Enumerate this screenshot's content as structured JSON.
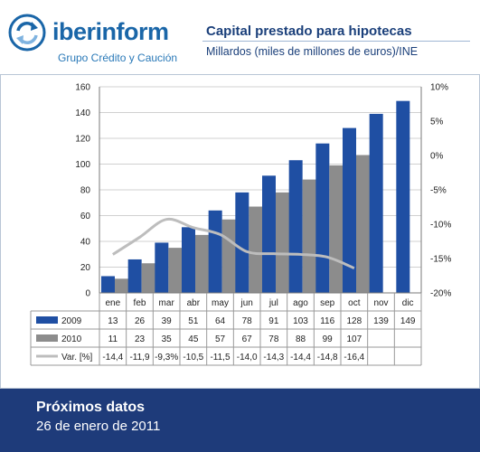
{
  "header": {
    "brand_bold": "iberinform",
    "tagline": "Grupo Crédito y Caución",
    "title": "Capital prestado para hipotecas",
    "subtitle": "Millardos (miles de millones de euros)/INE"
  },
  "footer": {
    "title": "Próximos datos",
    "date": "26 de enero de 2011"
  },
  "colors": {
    "series_2009": "#1f4fa3",
    "series_2010": "#8c8c8c",
    "series_var": "#bdbdbd",
    "footer_bg": "#1e3b7a"
  },
  "icons": {
    "logo": "circular-arrows-icon"
  },
  "chart_data": {
    "type": "bar",
    "categories": [
      "ene",
      "feb",
      "mar",
      "abr",
      "may",
      "jun",
      "jul",
      "ago",
      "sep",
      "oct",
      "nov",
      "dic"
    ],
    "series": [
      {
        "name": "2009",
        "values": [
          13,
          26,
          39,
          51,
          64,
          78,
          91,
          103,
          116,
          128,
          139,
          149
        ]
      },
      {
        "name": "2010",
        "values": [
          11,
          23,
          35,
          45,
          57,
          67,
          78,
          88,
          99,
          107,
          null,
          null
        ]
      }
    ],
    "line_series": {
      "name": "Var. [%]",
      "values": [
        -14.4,
        -11.9,
        -9.3,
        -10.5,
        -11.5,
        -14.0,
        -14.3,
        -14.4,
        -14.8,
        -16.4,
        null,
        null
      ],
      "labels": [
        "-14,4",
        "-11,9",
        "-9,3%",
        "-10,5",
        "-11,5",
        "-14,0",
        "-14,3",
        "-14,4",
        "-14,8",
        "-16,4",
        "",
        ""
      ]
    },
    "ylim": [
      0,
      160
    ],
    "yticks": [
      "0",
      "20",
      "40",
      "60",
      "80",
      "100",
      "120",
      "140",
      "160"
    ],
    "y2lim": [
      -20,
      10
    ],
    "y2ticks": [
      "-20%",
      "-15%",
      "-10%",
      "-5%",
      "0%",
      "5%",
      "10%"
    ],
    "grid": true,
    "legend": "data-table"
  }
}
